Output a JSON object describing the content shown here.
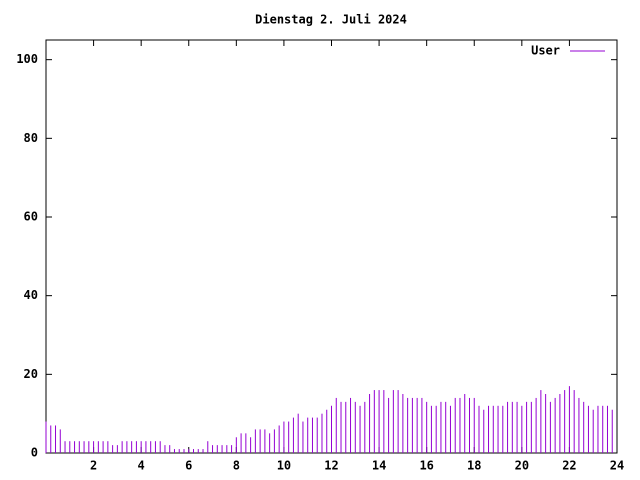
{
  "chart_data": {
    "type": "impulses",
    "title": "Dienstag 2. Juli 2024",
    "x": [
      0,
      0.2,
      0.4,
      0.6,
      0.8,
      1,
      1.2,
      1.4,
      1.6,
      1.8,
      2,
      2.2,
      2.4,
      2.6,
      2.8,
      3,
      3.2,
      3.4,
      3.6,
      3.8,
      4,
      4.2,
      4.4,
      4.6,
      4.8,
      5,
      5.2,
      5.4,
      5.6,
      5.8,
      6,
      6.2,
      6.4,
      6.6,
      6.8,
      7,
      7.2,
      7.4,
      7.6,
      7.8,
      8,
      8.2,
      8.4,
      8.6,
      8.8,
      9,
      9.2,
      9.4,
      9.6,
      9.8,
      10,
      10.2,
      10.4,
      10.6,
      10.8,
      11,
      11.2,
      11.4,
      11.6,
      11.8,
      12,
      12.2,
      12.4,
      12.6,
      12.8,
      13,
      13.2,
      13.4,
      13.6,
      13.8,
      14,
      14.2,
      14.4,
      14.6,
      14.8,
      15,
      15.2,
      15.4,
      15.6,
      15.8,
      16,
      16.2,
      16.4,
      16.6,
      16.8,
      17,
      17.2,
      17.4,
      17.6,
      17.8,
      18,
      18.2,
      18.4,
      18.6,
      18.8,
      19,
      19.2,
      19.4,
      19.6,
      19.8,
      20,
      20.2,
      20.4,
      20.6,
      20.8,
      21,
      21.2,
      21.4,
      21.6,
      21.8,
      22,
      22.2,
      22.4,
      22.6,
      22.8,
      23,
      23.2,
      23.4,
      23.6,
      23.8
    ],
    "series": [
      {
        "name": "User",
        "color": "#9400d3",
        "values": [
          8,
          7,
          7,
          6,
          3,
          3,
          3,
          3,
          3,
          3,
          3,
          3,
          3,
          3,
          2,
          2,
          3,
          3,
          3,
          3,
          3,
          3,
          3,
          3,
          3,
          2,
          2,
          1,
          1,
          1,
          1,
          1,
          1,
          1,
          3,
          2,
          2,
          2,
          2,
          2,
          4,
          5,
          5,
          4,
          6,
          6,
          6,
          5,
          6,
          7,
          8,
          8,
          9,
          10,
          8,
          9,
          9,
          9,
          10,
          11,
          12,
          14,
          13,
          13,
          14,
          13,
          12,
          13,
          15,
          16,
          16,
          16,
          14,
          16,
          16,
          15,
          14,
          14,
          14,
          14,
          13,
          12,
          12,
          13,
          13,
          12,
          14,
          14,
          15,
          14,
          14,
          12,
          11,
          12,
          12,
          12,
          12,
          13,
          13,
          13,
          12,
          13,
          13,
          14,
          16,
          15,
          13,
          14,
          15,
          16,
          17,
          16,
          14,
          13,
          12,
          11,
          12,
          12,
          12,
          11
        ]
      }
    ],
    "xlim": [
      0,
      24
    ],
    "xticks": [
      2,
      4,
      6,
      8,
      10,
      12,
      14,
      16,
      18,
      20,
      22,
      24
    ],
    "ylim": [
      0,
      105
    ],
    "yticks": [
      0,
      20,
      40,
      60,
      80,
      100
    ],
    "legend": "top-right"
  }
}
